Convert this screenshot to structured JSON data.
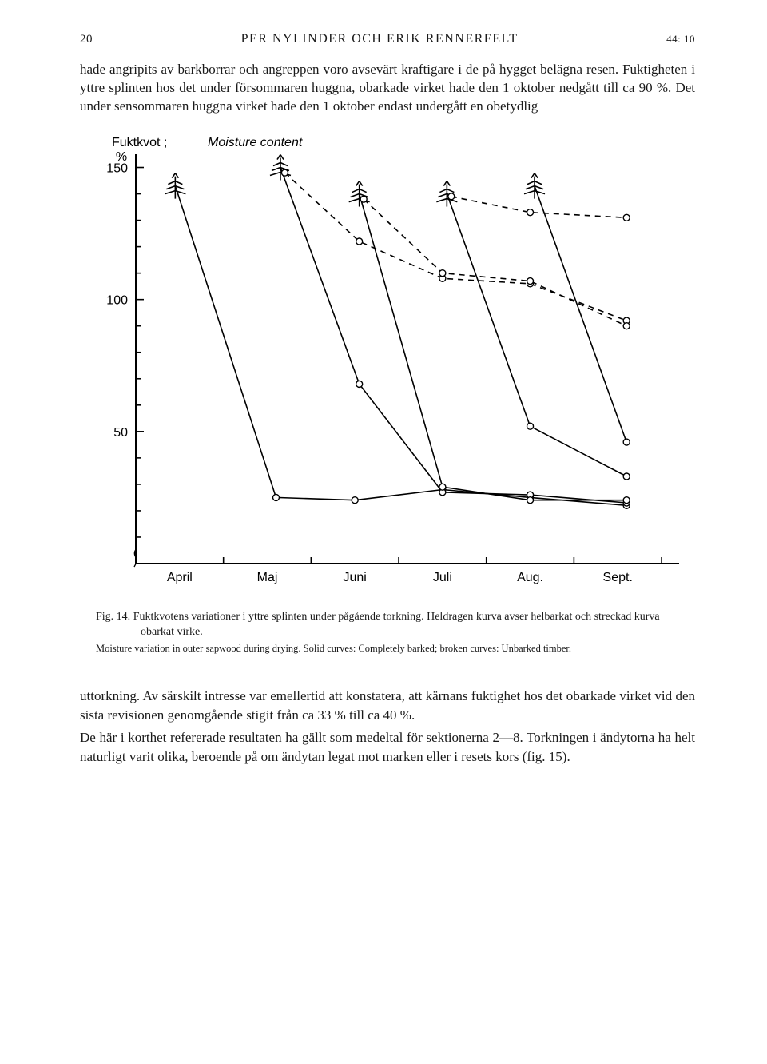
{
  "header": {
    "page_left": "20",
    "authors": "PER NYLINDER OCH ERIK RENNERFELT",
    "page_right": "44: 10"
  },
  "para_top": "hade angripits av barkborrar och angreppen voro avsevärt kraftigare i de på hygget belägna resen. Fuktigheten i yttre splinten hos det under försommaren huggna, obarkade virket hade den 1 oktober nedgått till ca 90 %. Det under sensommaren huggna virket hade den 1 oktober endast undergått en obetydlig",
  "chart": {
    "type": "line",
    "y_axis_title_1": "Fuktkvot ;",
    "y_axis_title_2": "Moisture content",
    "y_unit": "%",
    "ylim": [
      0,
      155
    ],
    "ytick_values": [
      50,
      100,
      150
    ],
    "x_categories": [
      "April",
      "Maj",
      "Juni",
      "Juli",
      "Aug.",
      "Sept."
    ],
    "axis_color": "#000000",
    "line_color": "#000000",
    "axis_stroke_width": 2,
    "line_stroke_width": 1.6,
    "dashed_pattern": "7 6",
    "tree_marker_size": 10,
    "circle_marker_radius": 4,
    "series": [
      {
        "name": "s1-solid",
        "style": "solid",
        "points": [
          {
            "x": 0.45,
            "y": 143
          },
          {
            "x": 1.6,
            "y": 25
          },
          {
            "x": 2.5,
            "y": 24
          },
          {
            "x": 3.5,
            "y": 28
          },
          {
            "x": 4.5,
            "y": 25
          },
          {
            "x": 5.6,
            "y": 22
          }
        ],
        "start_marker": "tree",
        "point_marker": "circle"
      },
      {
        "name": "s2-solid",
        "style": "solid",
        "points": [
          {
            "x": 1.65,
            "y": 150
          },
          {
            "x": 2.55,
            "y": 68
          },
          {
            "x": 3.5,
            "y": 27
          },
          {
            "x": 4.5,
            "y": 26
          },
          {
            "x": 5.6,
            "y": 23
          }
        ],
        "start_marker": "tree",
        "point_marker": "circle"
      },
      {
        "name": "s3-solid",
        "style": "solid",
        "points": [
          {
            "x": 2.55,
            "y": 140
          },
          {
            "x": 3.5,
            "y": 29
          },
          {
            "x": 4.5,
            "y": 24
          },
          {
            "x": 5.6,
            "y": 24
          }
        ],
        "start_marker": "tree",
        "point_marker": "circle"
      },
      {
        "name": "s4-solid",
        "style": "solid",
        "points": [
          {
            "x": 3.55,
            "y": 140
          },
          {
            "x": 4.5,
            "y": 52
          },
          {
            "x": 5.6,
            "y": 33
          }
        ],
        "start_marker": "tree",
        "point_marker": "circle"
      },
      {
        "name": "s5-solid",
        "style": "solid",
        "points": [
          {
            "x": 4.55,
            "y": 143
          },
          {
            "x": 5.6,
            "y": 46
          }
        ],
        "start_marker": "tree",
        "point_marker": "circle"
      },
      {
        "name": "s2-dashed",
        "style": "dashed",
        "points": [
          {
            "x": 1.7,
            "y": 148
          },
          {
            "x": 2.55,
            "y": 122
          },
          {
            "x": 3.5,
            "y": 108
          },
          {
            "x": 4.5,
            "y": 106
          },
          {
            "x": 5.6,
            "y": 92
          }
        ],
        "start_marker": "none",
        "point_marker": "circle"
      },
      {
        "name": "s3-dashed",
        "style": "dashed",
        "points": [
          {
            "x": 2.6,
            "y": 138
          },
          {
            "x": 3.5,
            "y": 110
          },
          {
            "x": 4.5,
            "y": 107
          },
          {
            "x": 5.6,
            "y": 90
          }
        ],
        "start_marker": "none",
        "point_marker": "circle"
      },
      {
        "name": "s4-dashed",
        "style": "dashed",
        "points": [
          {
            "x": 3.6,
            "y": 139
          },
          {
            "x": 4.5,
            "y": 133
          },
          {
            "x": 5.6,
            "y": 131
          }
        ],
        "start_marker": "none",
        "point_marker": "circle"
      }
    ],
    "font_family": "Arial, Helvetica, sans-serif",
    "title_fontsize": 16,
    "tick_fontsize": 16,
    "x_label_fontsize": 16
  },
  "caption": {
    "lead": "Fig. 14.",
    "sv": "Fuktkvotens variationer i yttre splinten under pågående torkning. Heldragen kurva avser helbarkat och streckad kurva obarkat virke.",
    "en": "Moisture variation in outer sapwood during drying. Solid curves: Completely barked; broken curves: Unbarked timber."
  },
  "para_bottom_1": "uttorkning. Av särskilt intresse var emellertid att konstatera, att kärnans fuktighet hos det obarkade virket vid den sista revisionen genomgående stigit från ca 33 % till ca 40 %.",
  "para_bottom_2": "De här i korthet refererade resultaten ha gällt som medeltal för sektionerna 2—8. Torkningen i ändytorna ha helt naturligt varit olika, beroende på om ändytan legat mot marken eller i resets kors (fig. 15)."
}
